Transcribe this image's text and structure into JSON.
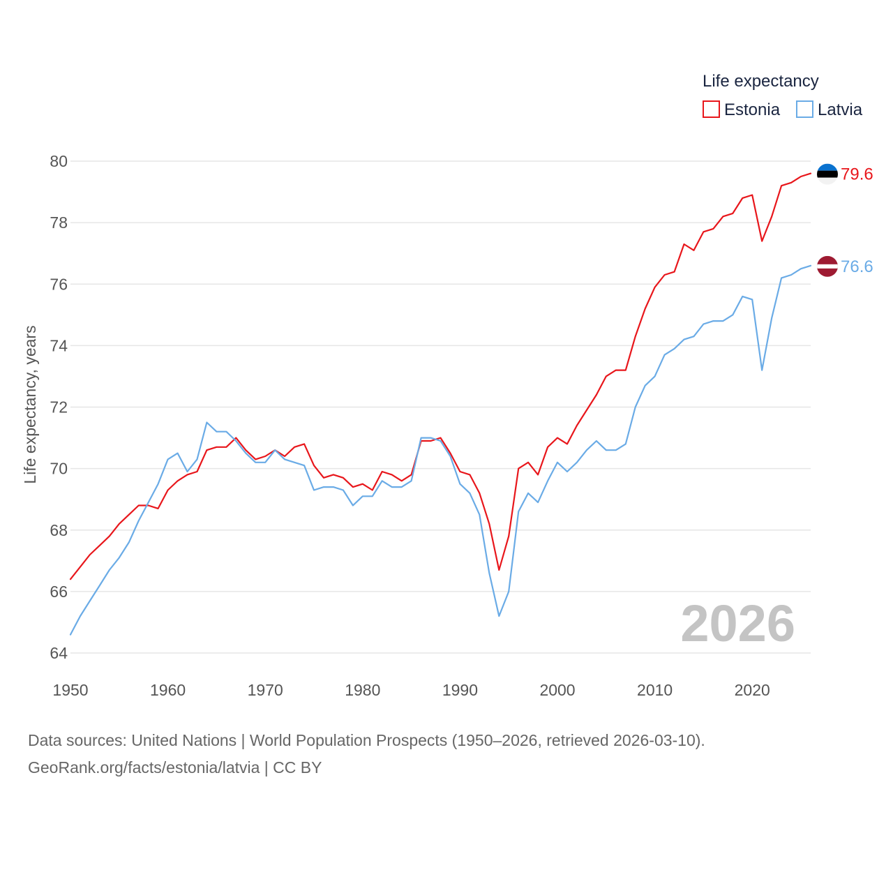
{
  "chart_data": {
    "type": "line",
    "title": "",
    "xlabel": "",
    "ylabel": "Life expectancy, years",
    "xlim": [
      1950,
      2026
    ],
    "ylim": [
      64,
      80
    ],
    "xticks": [
      1950,
      1960,
      1970,
      1980,
      1990,
      2000,
      2010,
      2020
    ],
    "yticks": [
      64,
      66,
      68,
      70,
      72,
      74,
      76,
      78,
      80
    ],
    "grid": true,
    "legend": {
      "title": "Life expectancy",
      "placement": "top-right"
    },
    "watermark_year": "2026",
    "x": [
      1950,
      1951,
      1952,
      1953,
      1954,
      1955,
      1956,
      1957,
      1958,
      1959,
      1960,
      1961,
      1962,
      1963,
      1964,
      1965,
      1966,
      1967,
      1968,
      1969,
      1970,
      1971,
      1972,
      1973,
      1974,
      1975,
      1976,
      1977,
      1978,
      1979,
      1980,
      1981,
      1982,
      1983,
      1984,
      1985,
      1986,
      1987,
      1988,
      1989,
      1990,
      1991,
      1992,
      1993,
      1994,
      1995,
      1996,
      1997,
      1998,
      1999,
      2000,
      2001,
      2002,
      2003,
      2004,
      2005,
      2006,
      2007,
      2008,
      2009,
      2010,
      2011,
      2012,
      2013,
      2014,
      2015,
      2016,
      2017,
      2018,
      2019,
      2020,
      2021,
      2022,
      2023,
      2024,
      2025,
      2026
    ],
    "series": [
      {
        "name": "Estonia",
        "color": "#e8161b",
        "end_label": "79.6",
        "flag": "estonia",
        "values": [
          66.4,
          66.8,
          67.2,
          67.5,
          67.8,
          68.2,
          68.5,
          68.8,
          68.8,
          68.7,
          69.3,
          69.6,
          69.8,
          69.9,
          70.6,
          70.7,
          70.7,
          71.0,
          70.6,
          70.3,
          70.4,
          70.6,
          70.4,
          70.7,
          70.8,
          70.1,
          69.7,
          69.8,
          69.7,
          69.4,
          69.5,
          69.3,
          69.9,
          69.8,
          69.6,
          69.8,
          70.9,
          70.9,
          71.0,
          70.5,
          69.9,
          69.8,
          69.2,
          68.2,
          66.7,
          67.8,
          70.0,
          70.2,
          69.8,
          70.7,
          71.0,
          70.8,
          71.4,
          71.9,
          72.4,
          73.0,
          73.2,
          73.2,
          74.3,
          75.2,
          75.9,
          76.3,
          76.4,
          77.3,
          77.1,
          77.7,
          77.8,
          78.2,
          78.3,
          78.8,
          78.9,
          77.4,
          78.2,
          79.2,
          79.3,
          79.5,
          79.6
        ]
      },
      {
        "name": "Latvia",
        "color": "#6aabe6",
        "end_label": "76.6",
        "flag": "latvia",
        "values": [
          64.6,
          65.2,
          65.7,
          66.2,
          66.7,
          67.1,
          67.6,
          68.3,
          68.9,
          69.5,
          70.3,
          70.5,
          69.9,
          70.3,
          71.5,
          71.2,
          71.2,
          70.9,
          70.5,
          70.2,
          70.2,
          70.6,
          70.3,
          70.2,
          70.1,
          69.3,
          69.4,
          69.4,
          69.3,
          68.8,
          69.1,
          69.1,
          69.6,
          69.4,
          69.4,
          69.6,
          71.0,
          71.0,
          70.9,
          70.4,
          69.5,
          69.2,
          68.5,
          66.6,
          65.2,
          66.0,
          68.6,
          69.2,
          68.9,
          69.6,
          70.2,
          69.9,
          70.2,
          70.6,
          70.9,
          70.6,
          70.6,
          70.8,
          72.0,
          72.7,
          73.0,
          73.7,
          73.9,
          74.2,
          74.3,
          74.7,
          74.8,
          74.8,
          75.0,
          75.6,
          75.5,
          73.2,
          74.9,
          76.2,
          76.3,
          76.5,
          76.6
        ]
      }
    ]
  },
  "source": {
    "line1": "Data sources: United Nations | World Population Prospects (1950–2026, retrieved 2026-03-10).",
    "line2": "GeoRank.org/facts/estonia/latvia | CC BY"
  }
}
